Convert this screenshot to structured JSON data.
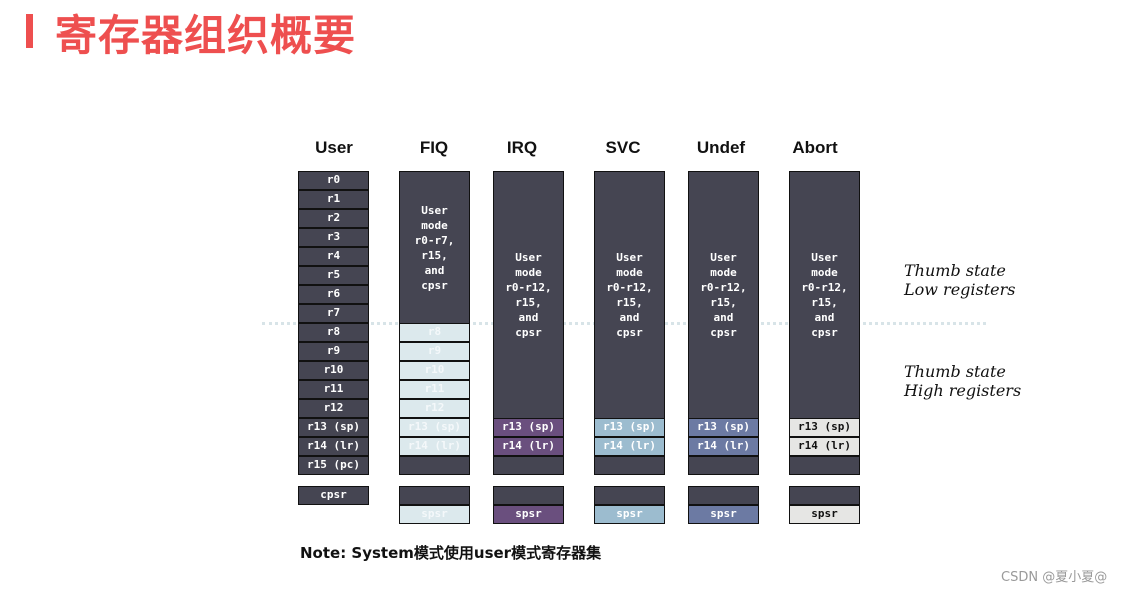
{
  "title": "寄存器组织概要",
  "columns": [
    {
      "id": "user",
      "label": "User"
    },
    {
      "id": "fiq",
      "label": "FIQ"
    },
    {
      "id": "irq",
      "label": "IRQ"
    },
    {
      "id": "svc",
      "label": "SVC"
    },
    {
      "id": "undef",
      "label": "Undef"
    },
    {
      "id": "abort",
      "label": "Abort"
    }
  ],
  "user_registers": [
    "r0",
    "r1",
    "r2",
    "r3",
    "r4",
    "r5",
    "r6",
    "r7",
    "r8",
    "r9",
    "r10",
    "r11",
    "r12",
    "r13 (sp)",
    "r14 (lr)",
    "r15 (pc)"
  ],
  "user_cpsr": "cpsr",
  "fiq": {
    "shared_text": "User\nmode\nr0-r7,\nr15,\nand\ncpsr",
    "banked": [
      "r8",
      "r9",
      "r10",
      "r11",
      "r12",
      "r13 (sp)",
      "r14 (lr)"
    ],
    "spsr": "spsr",
    "color": "#dce9ed"
  },
  "banked_modes": [
    {
      "id": "irq",
      "shared_text": "User\nmode\nr0-r12,\nr15,\nand\ncpsr",
      "sp": "r13 (sp)",
      "lr": "r14 (lr)",
      "spsr": "spsr",
      "color": "#6a4f7e",
      "text_color": "#ffffff"
    },
    {
      "id": "svc",
      "shared_text": "User\nmode\nr0-r12,\nr15,\nand\ncpsr",
      "sp": "r13 (sp)",
      "lr": "r14 (lr)",
      "spsr": "spsr",
      "color": "#9cbccf",
      "text_color": "#ffffff"
    },
    {
      "id": "undef",
      "shared_text": "User\nmode\nr0-r12,\nr15,\nand\ncpsr",
      "sp": "r13 (sp)",
      "lr": "r14 (lr)",
      "spsr": "spsr",
      "color": "#6c7aa3",
      "text_color": "#ffffff"
    },
    {
      "id": "abort",
      "shared_text": "User\nmode\nr0-r12,\nr15,\nand\ncpsr",
      "sp": "r13 (sp)",
      "lr": "r14 (lr)",
      "spsr": "spsr",
      "color": "#e6e6e4",
      "text_color": "#111111"
    }
  ],
  "thumb_low": [
    "Thumb state",
    "Low  registers"
  ],
  "thumb_high": [
    "Thumb state",
    "High registers"
  ],
  "note": "Note: System模式使用user模式寄存器集",
  "watermark": "CSDN @夏小夏@"
}
